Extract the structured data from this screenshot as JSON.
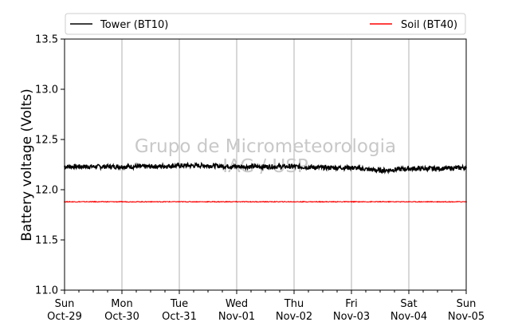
{
  "chart_data": {
    "type": "line",
    "ylabel": "Battery voltage (Volts)",
    "ylim": [
      11.0,
      13.5
    ],
    "yticks": [
      "11.0",
      "11.5",
      "12.0",
      "12.5",
      "13.0",
      "13.5"
    ],
    "xlim": [
      "2017-10-29",
      "2017-11-05"
    ],
    "xticks": [
      {
        "day": "Sun",
        "date": "Oct-29"
      },
      {
        "day": "Mon",
        "date": "Oct-30"
      },
      {
        "day": "Tue",
        "date": "Oct-31"
      },
      {
        "day": "Wed",
        "date": "Nov-01"
      },
      {
        "day": "Thu",
        "date": "Nov-02"
      },
      {
        "day": "Fri",
        "date": "Nov-03"
      },
      {
        "day": "Sat",
        "date": "Nov-04"
      },
      {
        "day": "Sun",
        "date": "Nov-05"
      }
    ],
    "grid": "vertical",
    "legend_position": "top",
    "watermark": [
      "Grupo de Micrometeorologia",
      "IAG / USP"
    ],
    "series": [
      {
        "name": "Tower (BT10)",
        "color": "#000000",
        "x": [
          "2017-10-29",
          "2017-10-29T12:00",
          "2017-10-30",
          "2017-10-30T12:00",
          "2017-10-31",
          "2017-10-31T12:00",
          "2017-11-01",
          "2017-11-01T12:00",
          "2017-11-02",
          "2017-11-02T12:00",
          "2017-11-03",
          "2017-11-03T12:00",
          "2017-11-04",
          "2017-11-04T12:00",
          "2017-11-05"
        ],
        "y": [
          12.23,
          12.23,
          12.23,
          12.23,
          12.24,
          12.24,
          12.23,
          12.23,
          12.23,
          12.22,
          12.22,
          12.19,
          12.21,
          12.21,
          12.22
        ]
      },
      {
        "name": "Soil (BT40)",
        "color": "#ff0000",
        "x": [
          "2017-10-29",
          "2017-10-29T12:00",
          "2017-10-30",
          "2017-10-30T12:00",
          "2017-10-31",
          "2017-10-31T12:00",
          "2017-11-01",
          "2017-11-01T12:00",
          "2017-11-02",
          "2017-11-02T12:00",
          "2017-11-03",
          "2017-11-03T12:00",
          "2017-11-04",
          "2017-11-04T12:00",
          "2017-11-05"
        ],
        "y": [
          11.88,
          11.88,
          11.88,
          11.88,
          11.88,
          11.88,
          11.88,
          11.88,
          11.88,
          11.88,
          11.88,
          11.88,
          11.88,
          11.88,
          11.88
        ]
      }
    ]
  }
}
